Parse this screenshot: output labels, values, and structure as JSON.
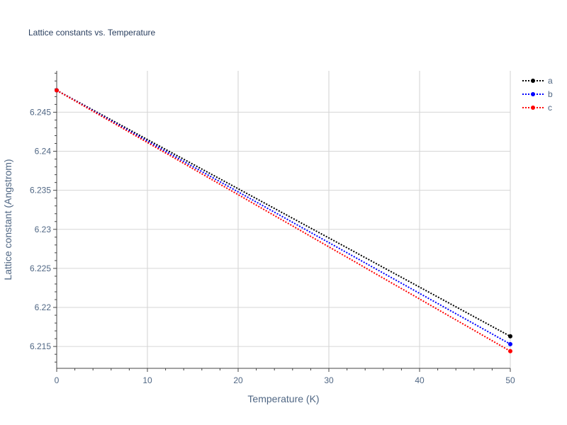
{
  "chart_data": {
    "type": "line",
    "title": "Lattice constants vs. Temperature",
    "xlabel": "Temperature (K)",
    "ylabel": "Lattice constant (Angstrom)",
    "xlim": [
      0,
      50
    ],
    "ylim": [
      6.2122,
      6.2503
    ],
    "x_ticks": [
      0,
      10,
      20,
      30,
      40,
      50
    ],
    "x_tick_labels": [
      "0",
      "10",
      "20",
      "30",
      "40",
      "50"
    ],
    "y_ticks": [
      6.215,
      6.22,
      6.225,
      6.23,
      6.235,
      6.24,
      6.245
    ],
    "y_tick_labels": [
      "6.215",
      "6.22",
      "6.225",
      "6.23",
      "6.235",
      "6.24",
      "6.245"
    ],
    "grid": true,
    "legend_position": "top-right",
    "series": [
      {
        "name": "a",
        "color": "#000000",
        "line_style": "dotted",
        "marker_ends": true,
        "x": [
          0,
          50
        ],
        "y": [
          6.2478,
          6.2163
        ]
      },
      {
        "name": "b",
        "color": "#0000ff",
        "line_style": "dotted",
        "marker_ends": true,
        "x": [
          0,
          50
        ],
        "y": [
          6.2478,
          6.2153
        ]
      },
      {
        "name": "c",
        "color": "#ff0000",
        "line_style": "dotted",
        "marker_ends": true,
        "x": [
          0,
          50
        ],
        "y": [
          6.2478,
          6.2144
        ]
      }
    ]
  }
}
